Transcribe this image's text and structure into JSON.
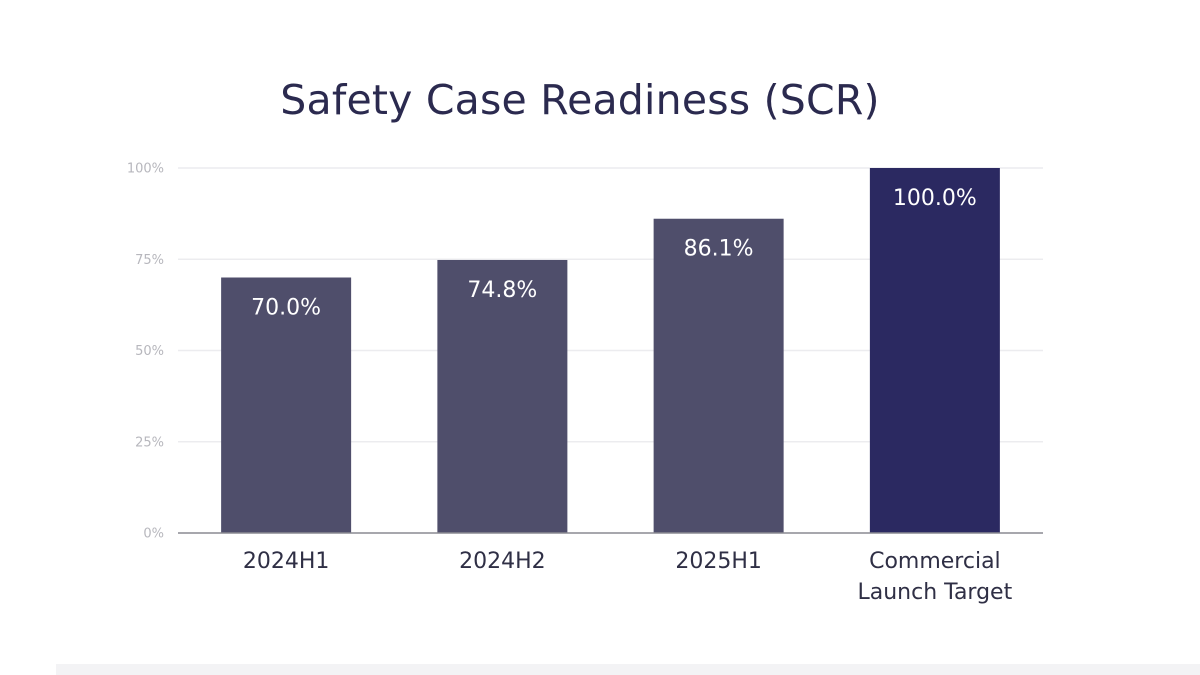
{
  "chart_data": {
    "type": "bar",
    "title": "Safety Case Readiness (SCR)",
    "xlabel": "",
    "ylabel": "",
    "categories": [
      [
        "2024H1"
      ],
      [
        "2024H2"
      ],
      [
        "2025H1"
      ],
      [
        "Commercial",
        "Launch Target"
      ]
    ],
    "values": [
      70.0,
      74.8,
      86.1,
      100.0
    ],
    "value_labels": [
      "70.0%",
      "74.8%",
      "86.1%",
      "100.0%"
    ],
    "ylim": [
      0,
      100
    ],
    "yticks": [
      0,
      25,
      50,
      75,
      100
    ],
    "ytick_labels": [
      "0%",
      "25%",
      "50%",
      "75%",
      "100%"
    ],
    "grid": true,
    "legend": "none",
    "colors": {
      "bar": "#4f4e6b",
      "highlight_bar": "#2b2961",
      "grid": "#ececef",
      "axis": "#8a8a92"
    },
    "highlight_index": 3
  }
}
